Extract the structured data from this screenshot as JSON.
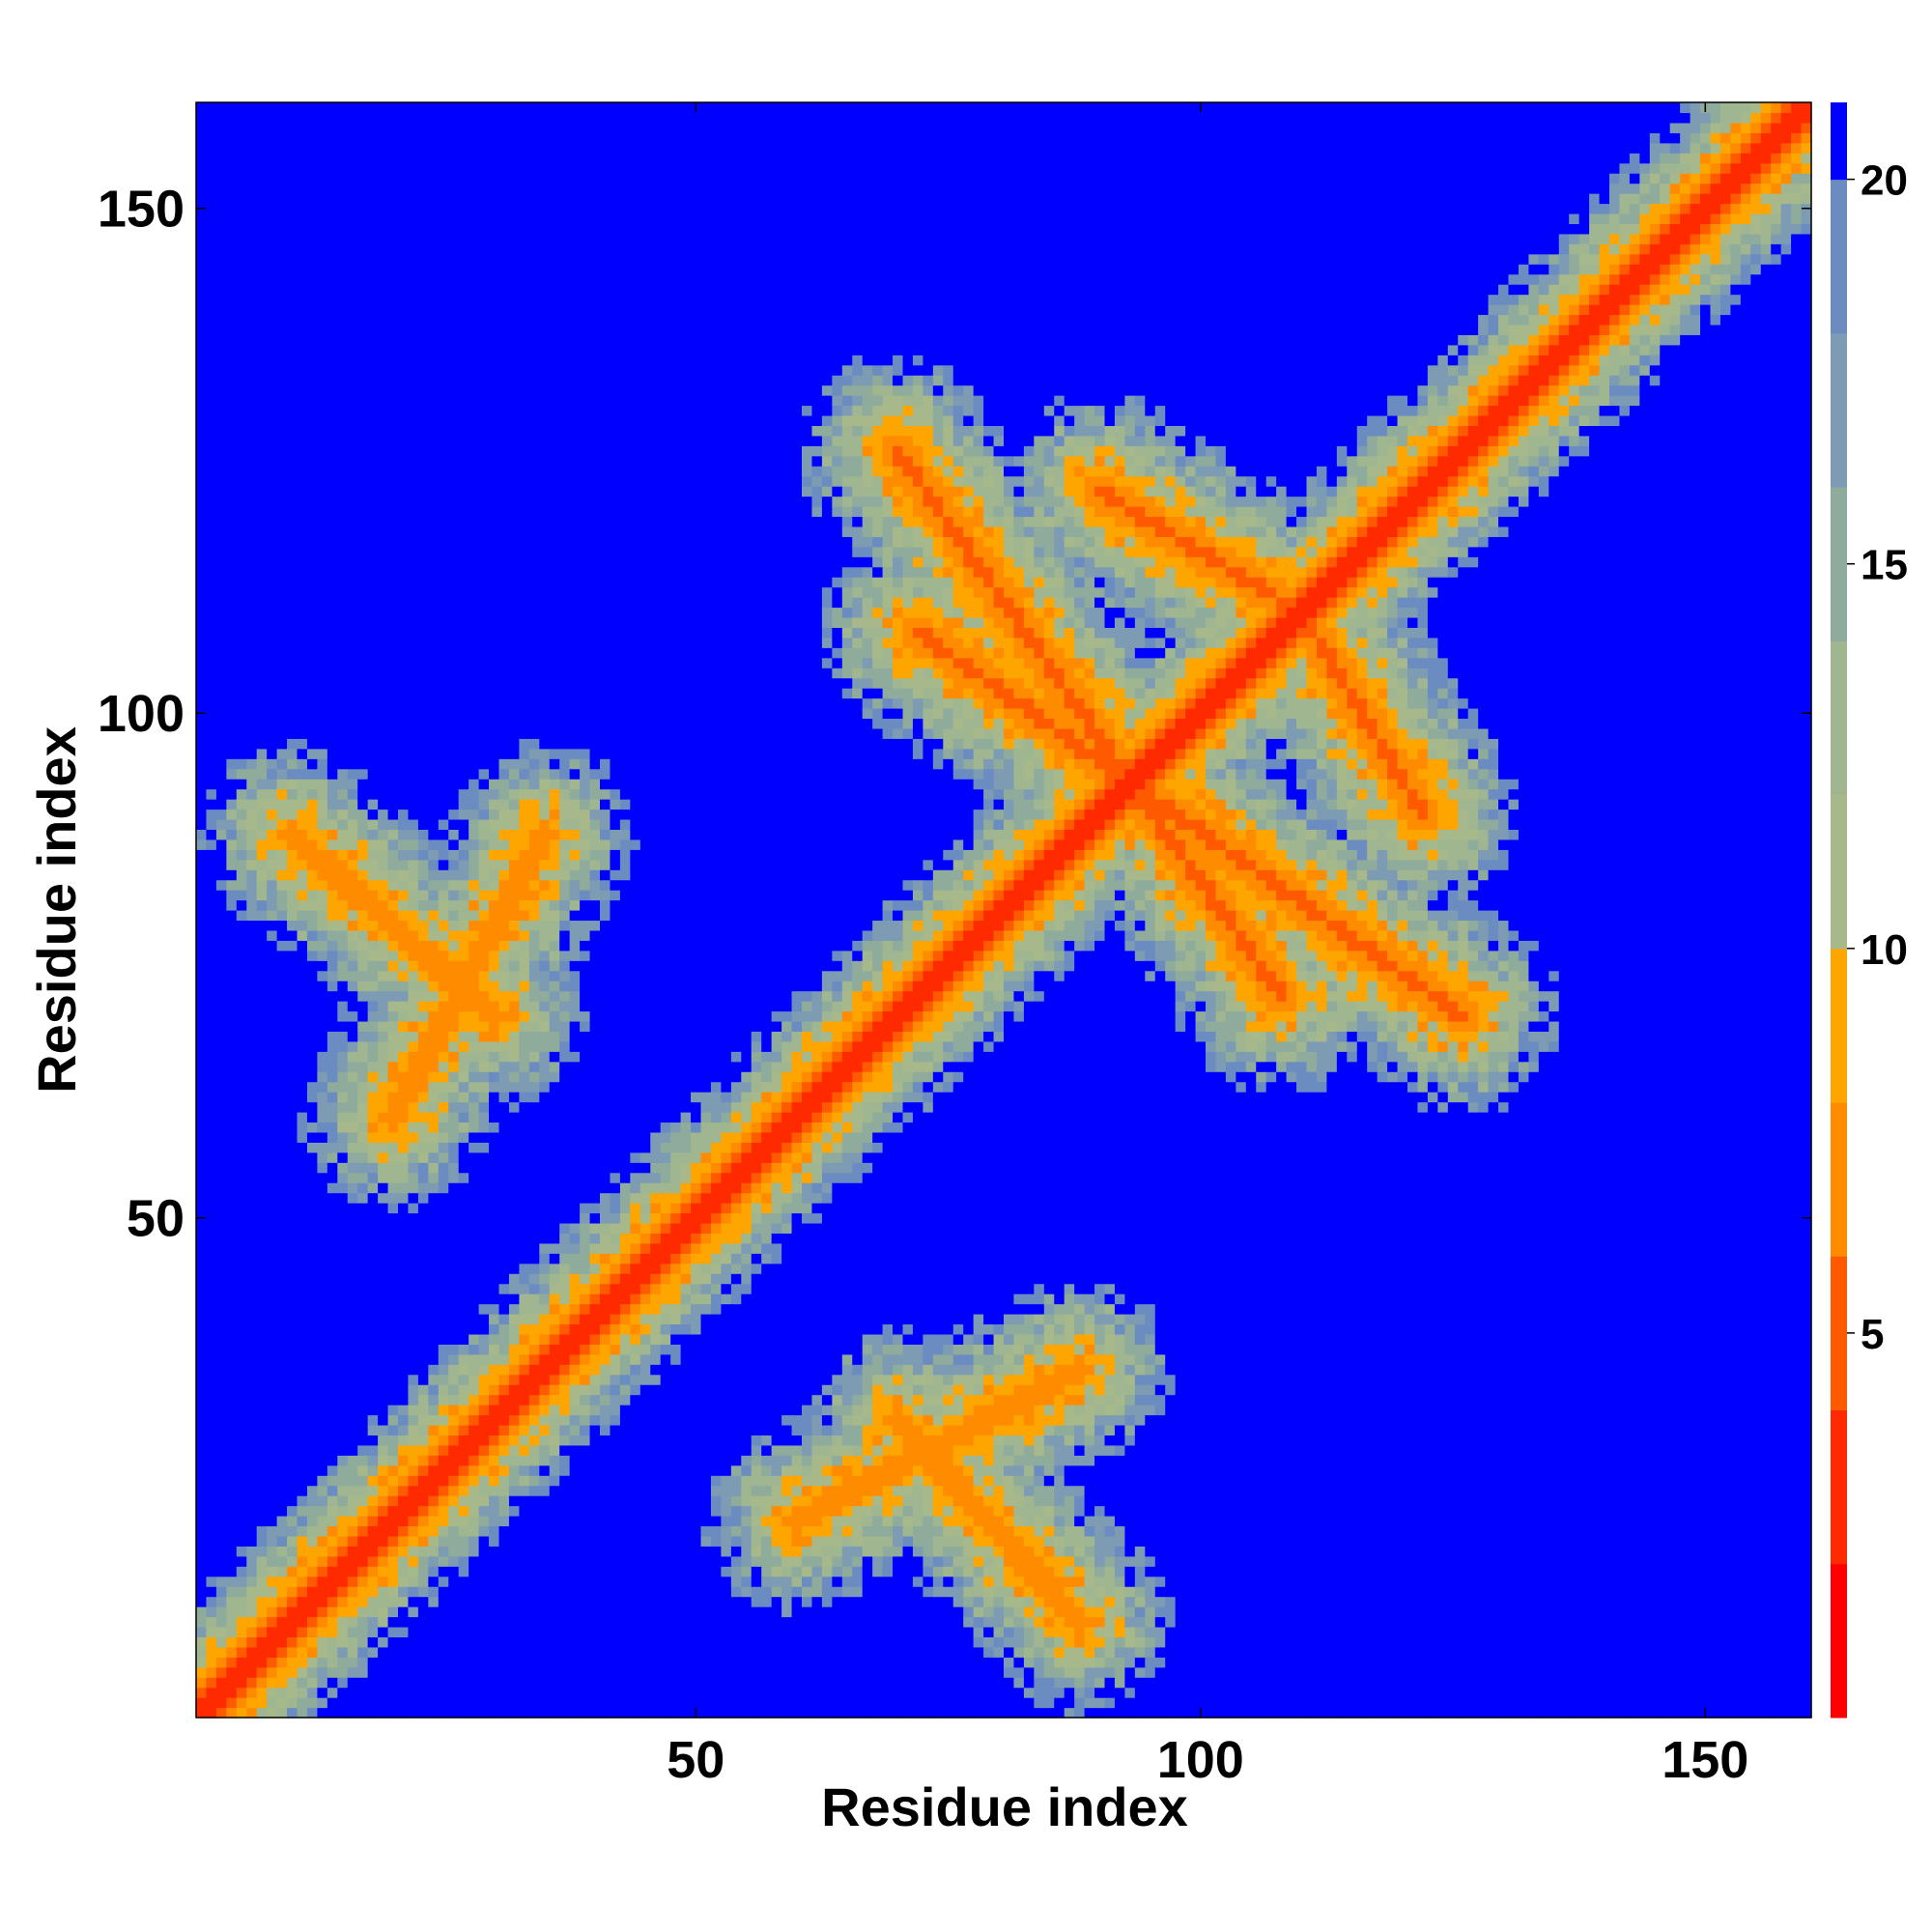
{
  "chart_data": {
    "type": "heatmap",
    "title": "",
    "xlabel": "Residue index",
    "ylabel": "Residue index",
    "x_range": [
      1,
      160
    ],
    "y_range": [
      1,
      160
    ],
    "x_ticks": [
      50,
      100,
      150
    ],
    "y_ticks": [
      50,
      100,
      150
    ],
    "x_tick_labels": [
      "50",
      "100",
      "150"
    ],
    "y_tick_labels": [
      "50",
      "100",
      "150"
    ],
    "n_residues": 160,
    "colorbar": {
      "range": [
        0,
        21
      ],
      "ticks": [
        5,
        10,
        15,
        20
      ],
      "tick_labels": [
        "5",
        "10",
        "15",
        "20"
      ],
      "bands": [
        {
          "from": 0,
          "to": 2,
          "color": "#ff0000"
        },
        {
          "from": 2,
          "to": 4,
          "color": "#ff2a00"
        },
        {
          "from": 4,
          "to": 6,
          "color": "#ff5a00"
        },
        {
          "from": 6,
          "to": 8,
          "color": "#ff8c00"
        },
        {
          "from": 8,
          "to": 10,
          "color": "#ffa500"
        },
        {
          "from": 10,
          "to": 12,
          "color": "#a7b98a"
        },
        {
          "from": 12,
          "to": 14,
          "color": "#9fb690"
        },
        {
          "from": 14,
          "to": 16,
          "color": "#8eab9c"
        },
        {
          "from": 16,
          "to": 18,
          "color": "#7d9bb2"
        },
        {
          "from": 18,
          "to": 20,
          "color": "#6b8cc0"
        },
        {
          "from": 20,
          "to": 21,
          "color": "#0000ff"
        }
      ]
    },
    "grid": false,
    "structure_features": {
      "main_diagonal_distance": 2,
      "antiparallel_contact_bands": [
        {
          "x_from": 72,
          "y_from": 108,
          "x_to": 126,
          "y_to": 70,
          "min_distance": 5
        },
        {
          "x_from": 90,
          "y_from": 122,
          "x_to": 110,
          "y_to": 110,
          "min_distance": 5
        },
        {
          "x_from": 10,
          "y_from": 88,
          "x_to": 30,
          "y_to": 70,
          "min_distance": 6
        },
        {
          "x_from": 60,
          "y_from": 20,
          "x_to": 88,
          "y_to": 35,
          "min_distance": 6
        }
      ],
      "background_distance": 21
    }
  }
}
